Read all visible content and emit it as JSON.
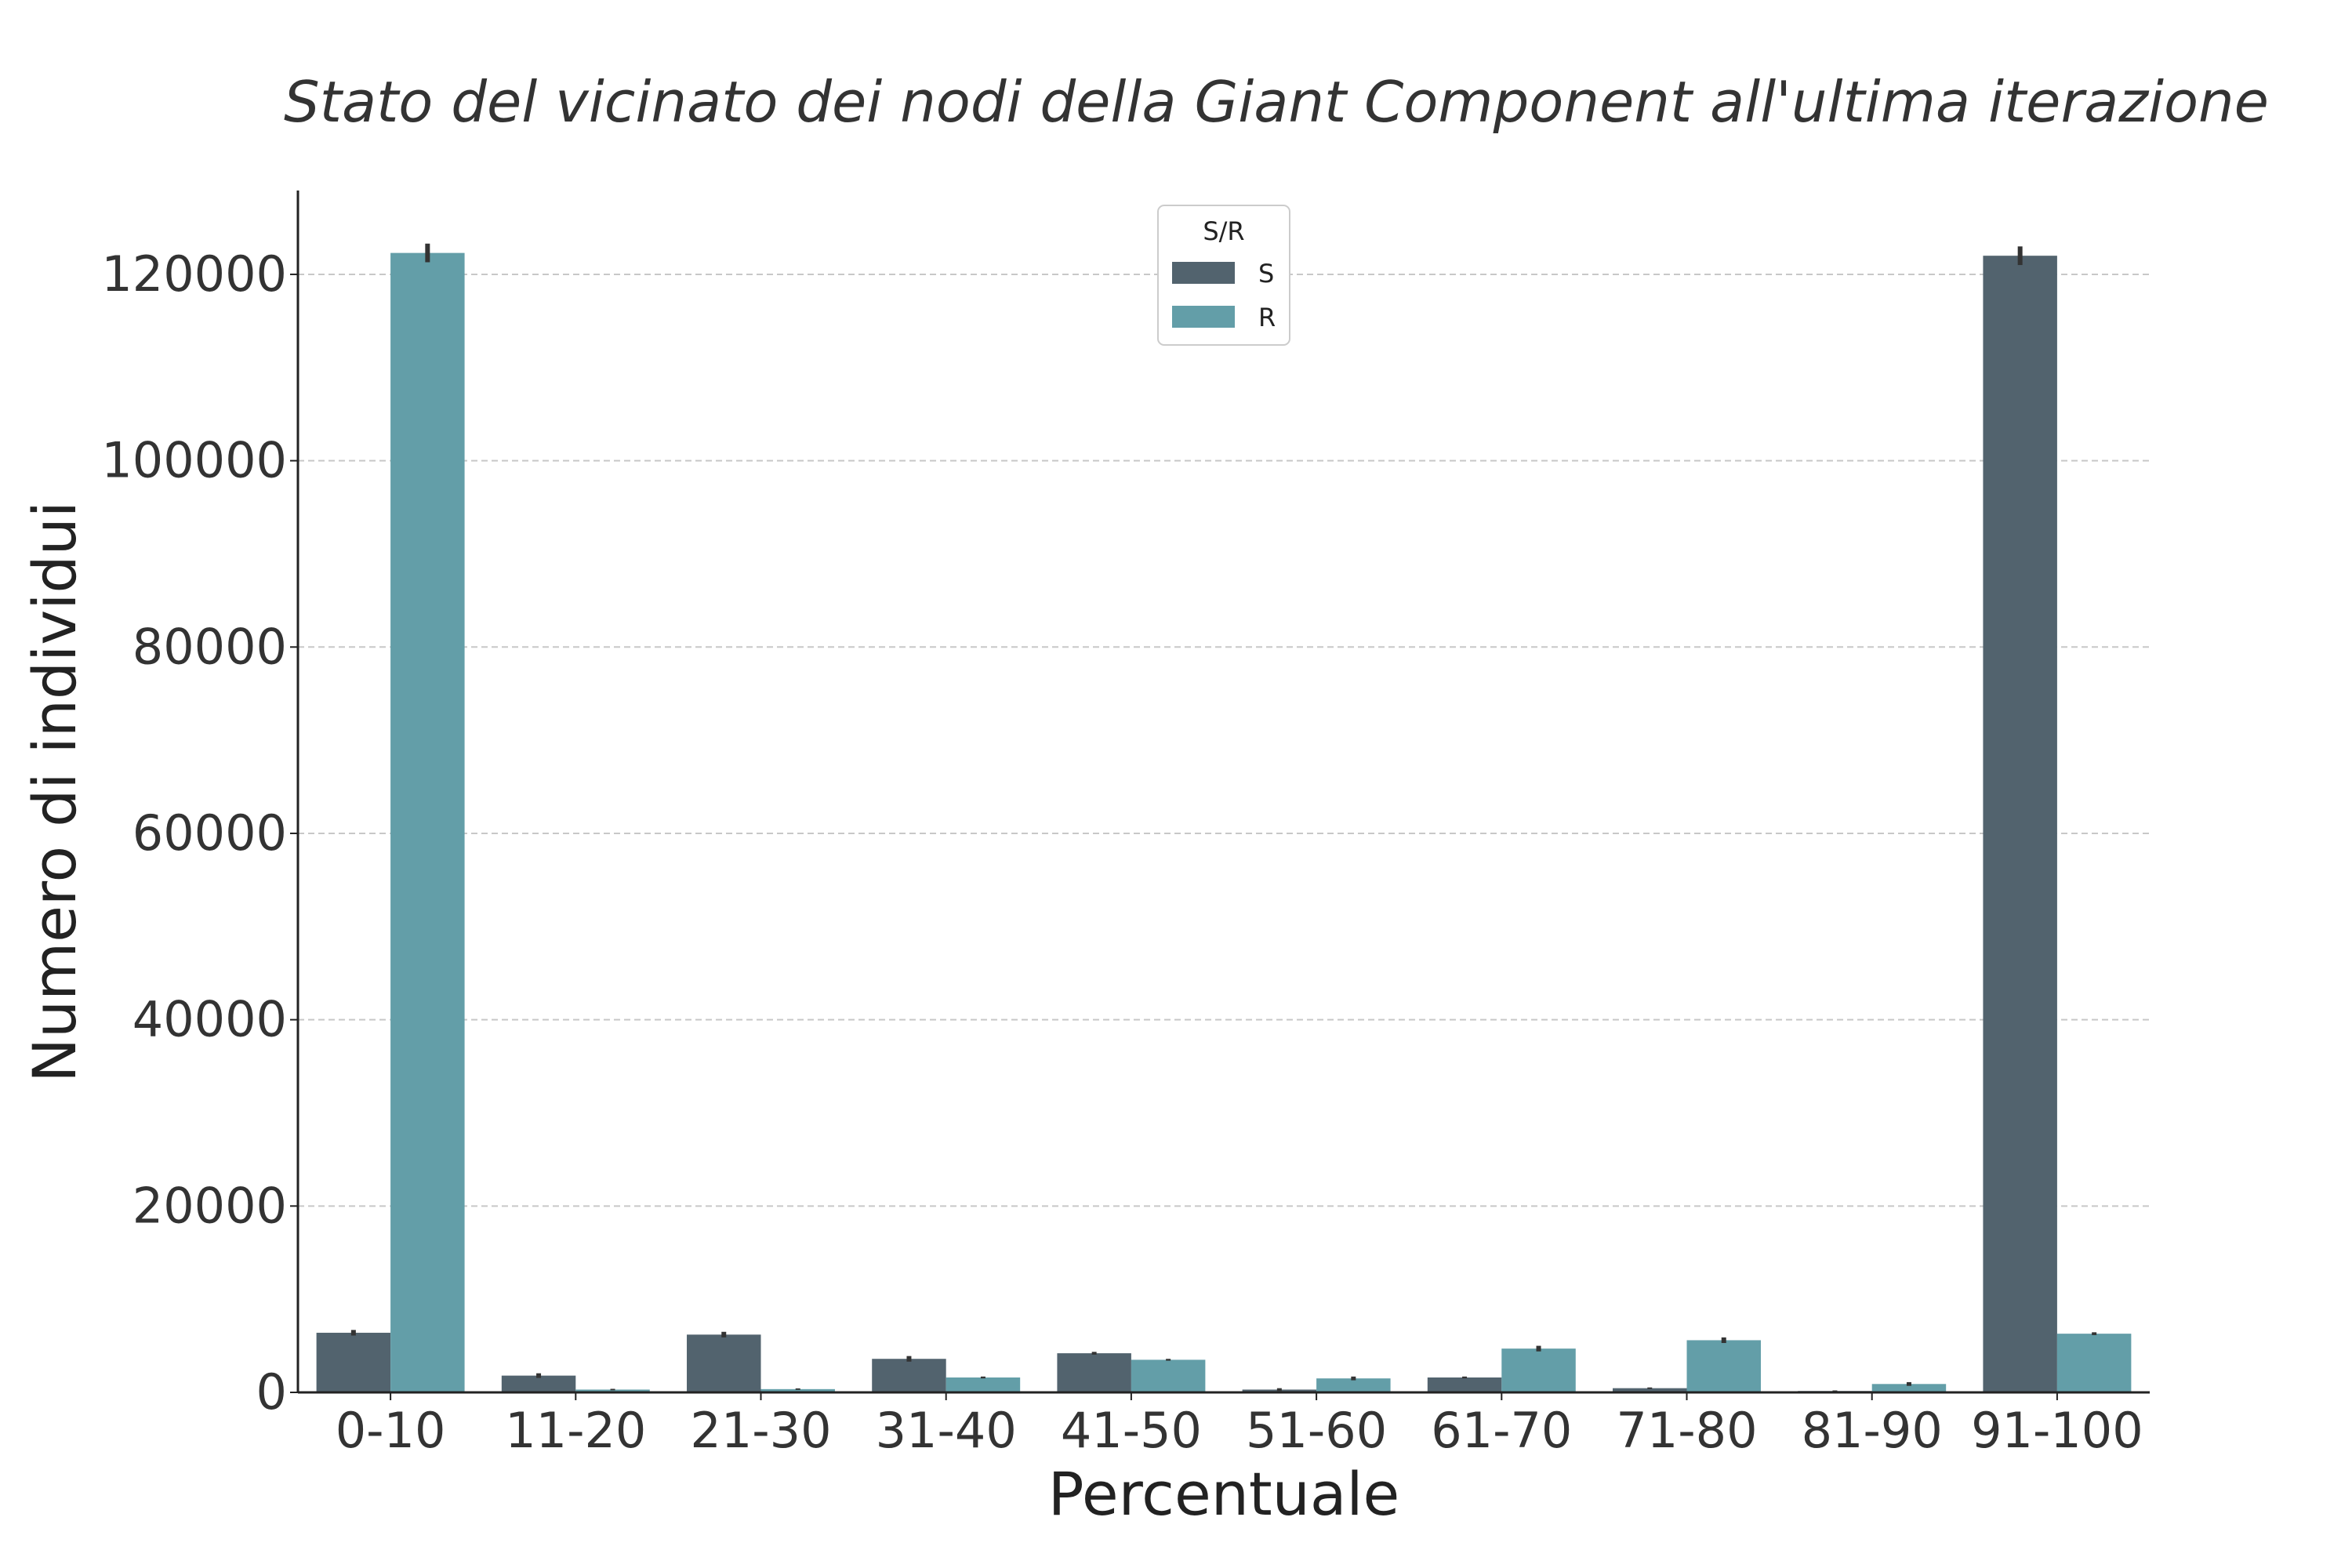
{
  "chart_data": {
    "type": "bar",
    "title": "Stato del vicinato dei nodi della Giant Component all'ultima iterazione",
    "xlabel": "Percentuale",
    "ylabel": "Numero di individui",
    "categories": [
      "0-10",
      "11-20",
      "21-30",
      "31-40",
      "41-50",
      "51-60",
      "61-70",
      "71-80",
      "81-90",
      "91-100"
    ],
    "series": [
      {
        "name": "S",
        "color": "#52636e",
        "values": [
          6400,
          1800,
          6200,
          3600,
          4200,
          300,
          1600,
          450,
          150,
          122000
        ],
        "err": [
          300,
          250,
          300,
          300,
          150,
          150,
          100,
          80,
          60,
          1000
        ]
      },
      {
        "name": "R",
        "color": "#639ea8",
        "values": [
          122300,
          300,
          350,
          1600,
          3500,
          1500,
          4700,
          5600,
          900,
          6300
        ],
        "err": [
          1000,
          80,
          80,
          100,
          100,
          200,
          300,
          300,
          200,
          150
        ]
      }
    ],
    "ylim": [
      0,
      129000
    ],
    "yticks": [
      0,
      20000,
      40000,
      60000,
      80000,
      100000,
      120000
    ],
    "ytick_labels": [
      "0",
      "20000",
      "40000",
      "60000",
      "80000",
      "100000",
      "120000"
    ],
    "grid": "horizontal-dashed",
    "legend": {
      "title": "S/R",
      "position": "top-center",
      "entries": [
        "S",
        "R"
      ]
    }
  }
}
